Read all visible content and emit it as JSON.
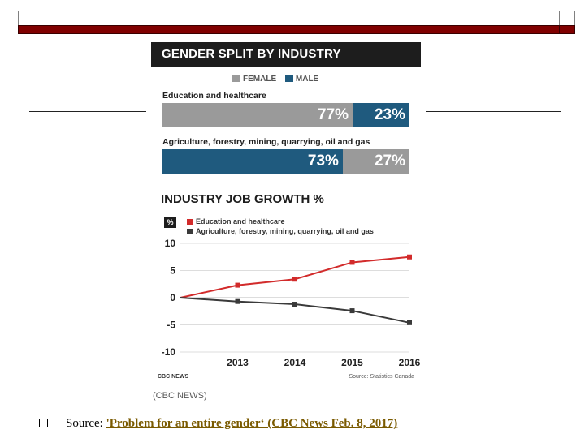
{
  "slide": {
    "source_prefix": "Source: ",
    "source_link": "'Problem for an entire gender‘ (CBC News Feb. 8, 2017)"
  },
  "figure": {
    "header": "GENDER SPLIT BY INDUSTRY",
    "legend": {
      "female": "FEMALE",
      "male": "MALE"
    },
    "colors": {
      "female": "#9a9a9a",
      "male": "#1f5a7e",
      "edu_line": "#d22b2b",
      "agri_line": "#3a3a3a",
      "header_bg": "#1d1d1d"
    },
    "footer_left": "CBC NEWS",
    "footer_right": "Source: Statistics Canada",
    "caption": "(CBC NEWS)"
  },
  "chart_data": [
    {
      "type": "bar",
      "title": "GENDER SPLIT BY INDUSTRY",
      "stacked": true,
      "categories": [
        "Education and healthcare",
        "Agriculture, forestry, mining, quarrying, oil and gas"
      ],
      "series": [
        {
          "name": "FEMALE",
          "values": [
            77,
            27
          ]
        },
        {
          "name": "MALE",
          "values": [
            23,
            73
          ]
        }
      ],
      "value_labels": {
        "edu_female": "77%",
        "edu_male": "23%",
        "agri_male": "73%",
        "agri_female": "27%"
      },
      "unit": "%"
    },
    {
      "type": "line",
      "title": "INDUSTRY JOB GROWTH %",
      "ylabel": "%",
      "x": [
        "",
        "2013",
        "2014",
        "2015",
        "2016"
      ],
      "ylim": [
        -10,
        10
      ],
      "yticks": [
        "10",
        "5",
        "0",
        "-5",
        "-10"
      ],
      "series": [
        {
          "name": "Education and healthcare",
          "values": [
            0,
            2.3,
            3.4,
            6.5,
            7.5
          ]
        },
        {
          "name": "Agriculture, forestry, mining, quarrying, oil and gas",
          "values": [
            0,
            -0.7,
            -1.2,
            -2.4,
            -4.6
          ]
        }
      ]
    }
  ]
}
